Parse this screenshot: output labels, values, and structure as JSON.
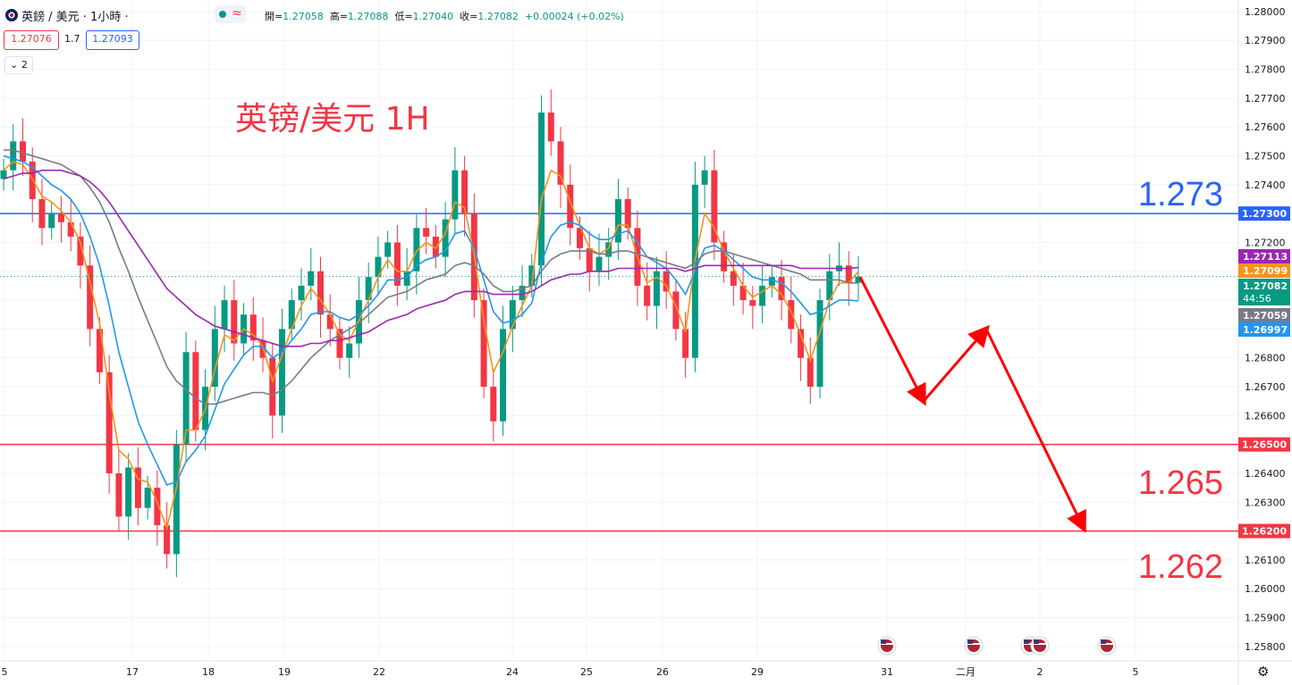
{
  "header": {
    "symbol": "英鎊 / 美元 · 1小時 ·",
    "ohlc": [
      {
        "label": "開",
        "value": "1.27058"
      },
      {
        "label": "高",
        "value": "1.27088"
      },
      {
        "label": "低",
        "value": "1.27040"
      },
      {
        "label": "收",
        "value": "1.27082"
      }
    ],
    "change": "+0.00024 (+0.02%)",
    "bid": "1.27076",
    "spread": "1.7",
    "ask": "1.27093",
    "indicator_count": "2"
  },
  "annotation_title": "英镑/美元 1H",
  "chart_data": {
    "type": "candlestick",
    "title": "英镑/美元 1H",
    "y_ticks": [
      "1.28000",
      "1.27900",
      "1.27800",
      "1.27700",
      "1.27600",
      "1.27500",
      "1.27400",
      "1.27300",
      "1.27200",
      "1.27100",
      "1.27000",
      "1.26900",
      "1.26800",
      "1.26700",
      "1.26600",
      "1.26500",
      "1.26400",
      "1.26300",
      "1.26200",
      "1.26100",
      "1.26000",
      "1.25900",
      "1.25800"
    ],
    "ylim": [
      1.2575,
      1.2804
    ],
    "x_ticks": [
      "5",
      "17",
      "18",
      "19",
      "22",
      "24",
      "25",
      "26",
      "29",
      "31",
      "二月",
      "2",
      "5"
    ],
    "horizontal_levels": [
      {
        "value": 1.273,
        "label": "1.27300",
        "big_label": "1.273",
        "color": "#2962ff"
      },
      {
        "value": 1.265,
        "label": "1.26500",
        "big_label": "1.265",
        "color": "#f23645"
      },
      {
        "value": 1.262,
        "label": "1.26200",
        "big_label": "1.262",
        "color": "#f23645"
      }
    ],
    "price_labels": [
      {
        "value": 1.27113,
        "text": "1.27113",
        "color": "#9c27b0"
      },
      {
        "value": 1.27099,
        "text": "1.27099",
        "color": "#f7931a"
      },
      {
        "value": 1.27082,
        "text": "1.27082",
        "sub": "44:56",
        "color": "#089981"
      },
      {
        "value": 1.27059,
        "text": "1.27059",
        "color": "#787b86"
      },
      {
        "value": 1.26997,
        "text": "1.26997",
        "color": "#2196f3"
      }
    ],
    "current_price": 1.27082,
    "forecast_path": [
      1.2708,
      1.2665,
      1.269,
      1.2621
    ],
    "series": [
      {
        "name": "close",
        "values": [
          1.2745,
          1.2755,
          1.2748,
          1.2735,
          1.2725,
          1.273,
          1.2727,
          1.2722,
          1.2712,
          1.269,
          1.2675,
          1.264,
          1.2625,
          1.2642,
          1.2628,
          1.2635,
          1.2622,
          1.2612,
          1.265,
          1.2682,
          1.2655,
          1.267,
          1.269,
          1.27,
          1.2685,
          1.2695,
          1.2686,
          1.268,
          1.266,
          1.269,
          1.27,
          1.2705,
          1.271,
          1.2695,
          1.269,
          1.268,
          1.2685,
          1.27,
          1.2708,
          1.2715,
          1.272,
          1.2705,
          1.271,
          1.2725,
          1.2722,
          1.2715,
          1.2728,
          1.2745,
          1.273,
          1.27,
          1.267,
          1.2658,
          1.269,
          1.27,
          1.2705,
          1.2712,
          1.2765,
          1.2755,
          1.274,
          1.2725,
          1.2718,
          1.271,
          1.2715,
          1.272,
          1.2735,
          1.2725,
          1.2705,
          1.2698,
          1.271,
          1.2703,
          1.269,
          1.268,
          1.274,
          1.2745,
          1.272,
          1.271,
          1.2705,
          1.27,
          1.2698,
          1.2705,
          1.2708,
          1.27,
          1.269,
          1.268,
          1.267,
          1.27,
          1.271,
          1.2712,
          1.2706,
          1.27082
        ]
      },
      {
        "name": "ma_orange",
        "values": [
          1.2745,
          1.2748,
          1.2747,
          1.2742,
          1.2736,
          1.2734,
          1.2731,
          1.2727,
          1.272,
          1.2706,
          1.2692,
          1.2668,
          1.2648,
          1.2645,
          1.2638,
          1.2637,
          1.263,
          1.2621,
          1.2635,
          1.2655,
          1.2655,
          1.2662,
          1.2676,
          1.2688,
          1.2686,
          1.269,
          1.2688,
          1.2684,
          1.2672,
          1.2681,
          1.269,
          1.2698,
          1.2704,
          1.27,
          1.2695,
          1.2688,
          1.2686,
          1.2693,
          1.27,
          1.2708,
          1.2714,
          1.271,
          1.271,
          1.2717,
          1.272,
          1.2718,
          1.2723,
          1.2734,
          1.2732,
          1.2716,
          1.2693,
          1.2675,
          1.2682,
          1.2691,
          1.2698,
          1.2705,
          1.2735,
          1.2745,
          1.2743,
          1.2734,
          1.2726,
          1.2718,
          1.2716,
          1.2718,
          1.2726,
          1.2726,
          1.2715,
          1.2706,
          1.2708,
          1.2705,
          1.2698,
          1.2689,
          1.2714,
          1.273,
          1.2725,
          1.2717,
          1.2711,
          1.2705,
          1.2701,
          1.2703,
          1.2705,
          1.2702,
          1.2696,
          1.2688,
          1.2679,
          1.2689,
          1.27,
          1.2706,
          1.2706,
          1.27099
        ]
      },
      {
        "name": "ma_blue",
        "values": [
          1.275,
          1.2749,
          1.2748,
          1.2746,
          1.2743,
          1.274,
          1.2738,
          1.2735,
          1.273,
          1.2722,
          1.2712,
          1.2698,
          1.2682,
          1.267,
          1.2658,
          1.265,
          1.2643,
          1.2636,
          1.2637,
          1.2644,
          1.2648,
          1.2653,
          1.2662,
          1.2671,
          1.2676,
          1.2681,
          1.2684,
          1.2684,
          1.268,
          1.2682,
          1.2686,
          1.269,
          1.2695,
          1.2696,
          1.2696,
          1.2694,
          1.2693,
          1.2695,
          1.2698,
          1.2702,
          1.2707,
          1.2707,
          1.2708,
          1.2712,
          1.2714,
          1.2715,
          1.2717,
          1.2723,
          1.2724,
          1.2718,
          1.2707,
          1.2696,
          1.2692,
          1.2693,
          1.2695,
          1.2699,
          1.2713,
          1.2722,
          1.2726,
          1.2727,
          1.2726,
          1.2723,
          1.2721,
          1.2721,
          1.2723,
          1.2724,
          1.272,
          1.2715,
          1.2713,
          1.2711,
          1.2707,
          1.2702,
          1.271,
          1.2718,
          1.2719,
          1.2717,
          1.2714,
          1.2711,
          1.2708,
          1.2707,
          1.2707,
          1.2706,
          1.2703,
          1.2699,
          1.2695,
          1.2696,
          1.2698,
          1.27,
          1.27,
          1.26997
        ]
      },
      {
        "name": "ma_gray",
        "values": [
          1.2752,
          1.2752,
          1.2751,
          1.275,
          1.2749,
          1.2748,
          1.2747,
          1.2745,
          1.2743,
          1.2739,
          1.2734,
          1.2727,
          1.2718,
          1.271,
          1.2701,
          1.2693,
          1.2685,
          1.2677,
          1.2672,
          1.2669,
          1.2666,
          1.2664,
          1.2664,
          1.2665,
          1.2666,
          1.2667,
          1.2668,
          1.2668,
          1.2667,
          1.2669,
          1.2672,
          1.2676,
          1.268,
          1.2683,
          1.2686,
          1.2688,
          1.269,
          1.2692,
          1.2695,
          1.2698,
          1.2701,
          1.2702,
          1.2703,
          1.2705,
          1.2707,
          1.2708,
          1.2709,
          1.2712,
          1.2713,
          1.2712,
          1.2709,
          1.2705,
          1.2703,
          1.2703,
          1.2704,
          1.2705,
          1.271,
          1.2714,
          1.2716,
          1.2717,
          1.2717,
          1.2717,
          1.2716,
          1.2716,
          1.2717,
          1.2717,
          1.2716,
          1.2715,
          1.2714,
          1.2713,
          1.2712,
          1.2711,
          1.2713,
          1.2716,
          1.2717,
          1.2717,
          1.2716,
          1.2715,
          1.2714,
          1.2713,
          1.2712,
          1.2711,
          1.271,
          1.2709,
          1.2707,
          1.2707,
          1.2707,
          1.2707,
          1.2706,
          1.27059
        ]
      },
      {
        "name": "ma_purple",
        "values": [
          1.2742,
          1.2743,
          1.2744,
          1.2744,
          1.2745,
          1.2745,
          1.2745,
          1.2744,
          1.2743,
          1.2741,
          1.2738,
          1.2734,
          1.2729,
          1.2724,
          1.2719,
          1.2714,
          1.2709,
          1.2704,
          1.2701,
          1.2698,
          1.2695,
          1.2693,
          1.2691,
          1.269,
          1.2689,
          1.2688,
          1.2687,
          1.2686,
          1.2685,
          1.2684,
          1.2684,
          1.2684,
          1.2685,
          1.2685,
          1.2686,
          1.2686,
          1.2687,
          1.2688,
          1.2689,
          1.2691,
          1.2693,
          1.2694,
          1.2695,
          1.2697,
          1.2698,
          1.2699,
          1.27,
          1.2702,
          1.2703,
          1.2703,
          1.2703,
          1.2702,
          1.2702,
          1.2702,
          1.2702,
          1.2703,
          1.2705,
          1.2707,
          1.2708,
          1.2709,
          1.2709,
          1.271,
          1.271,
          1.271,
          1.2711,
          1.2711,
          1.2711,
          1.2711,
          1.2711,
          1.2711,
          1.2711,
          1.271,
          1.2711,
          1.2712,
          1.2712,
          1.2712,
          1.2712,
          1.2712,
          1.2712,
          1.2712,
          1.2712,
          1.2712,
          1.2712,
          1.2711,
          1.2711,
          1.2711,
          1.2711,
          1.2711,
          1.2711,
          1.27113
        ]
      }
    ],
    "colors": {
      "up": "#089981",
      "down": "#f23645",
      "grid": "#f0f3fa",
      "axis_text": "#131722",
      "forecast": "#ff0000",
      "title": "#f23645"
    }
  }
}
